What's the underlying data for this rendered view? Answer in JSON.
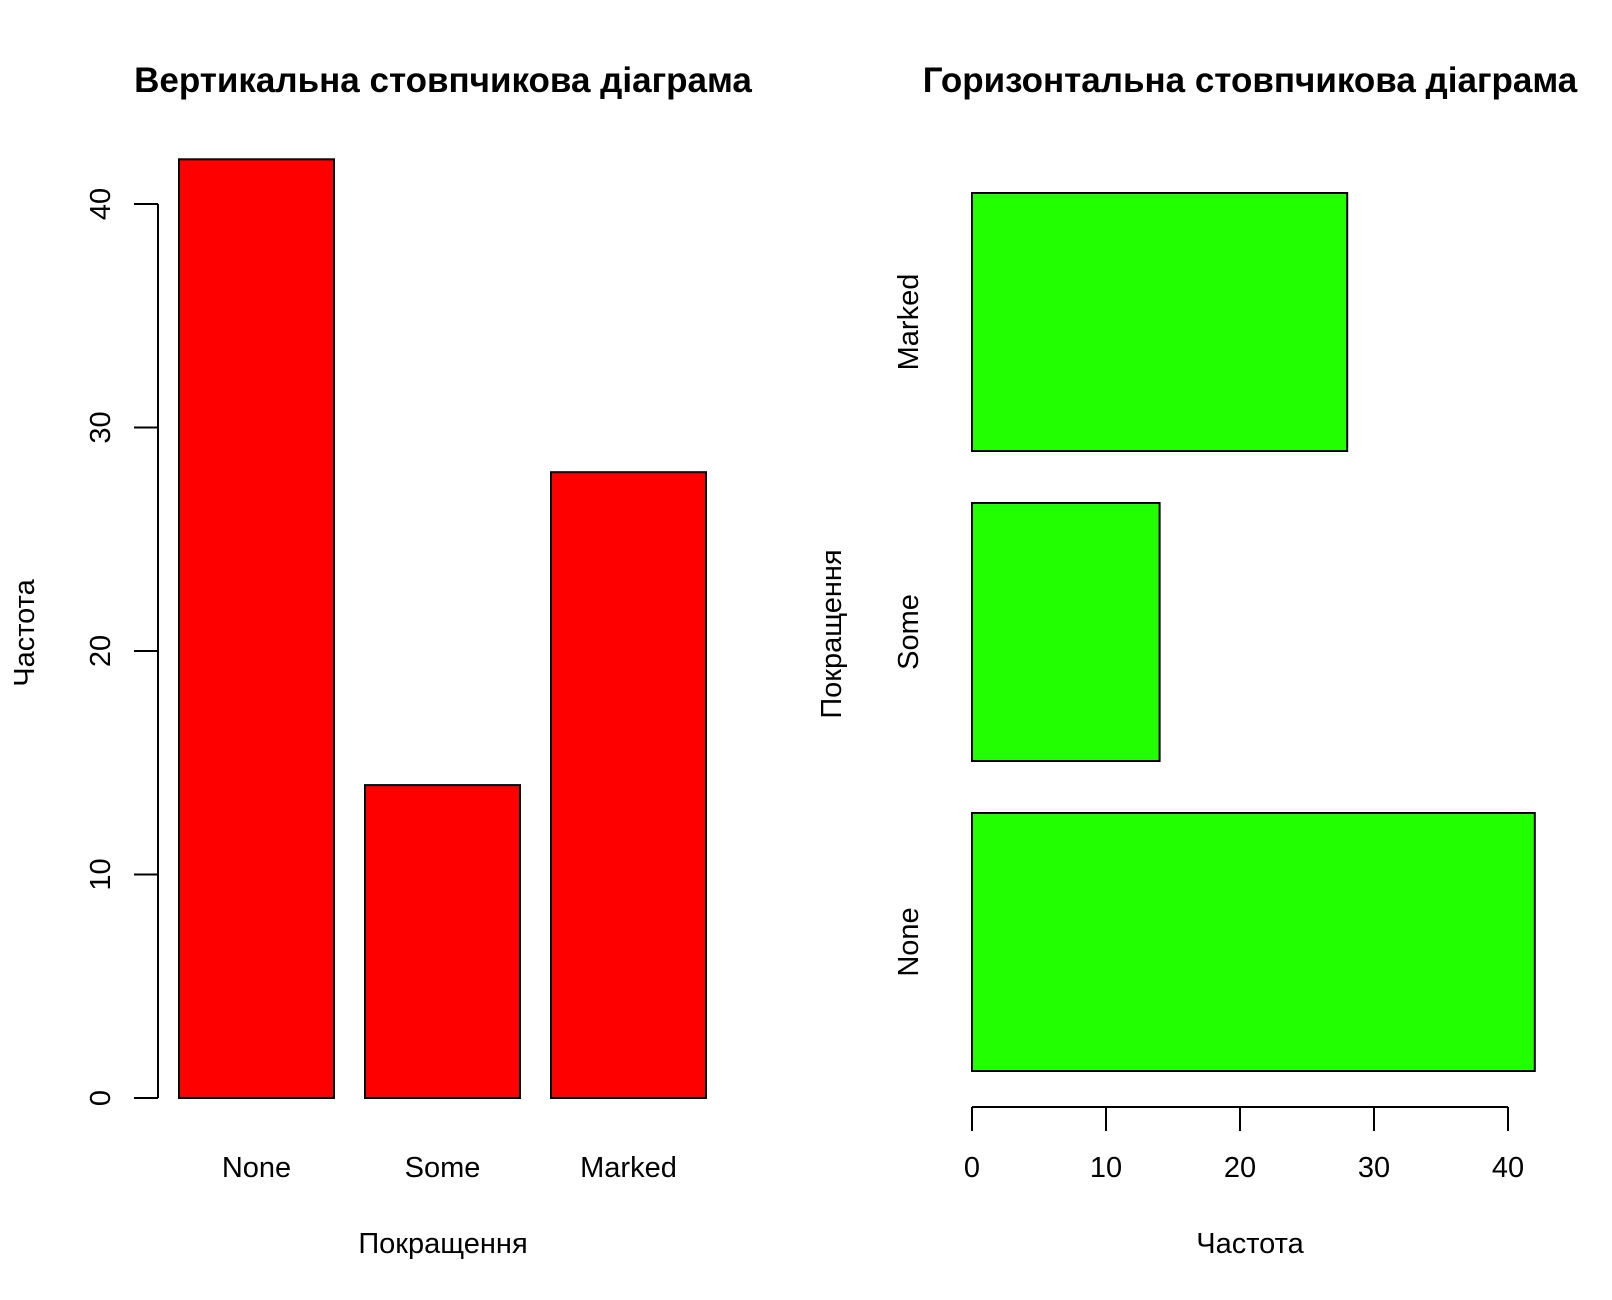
{
  "chart_data": [
    {
      "type": "bar",
      "orientation": "vertical",
      "title": "Вертикальна стовпчикова діаграма",
      "xlabel": "Покращення",
      "ylabel": "Частота",
      "categories": [
        "None",
        "Some",
        "Marked"
      ],
      "values": [
        42,
        14,
        28
      ],
      "ylim": [
        0,
        42
      ],
      "yticks": [
        "0",
        "10",
        "20",
        "30",
        "40"
      ],
      "bar_color": "#ff0000",
      "grid": false
    },
    {
      "type": "bar",
      "orientation": "horizontal",
      "title": "Горизонтальна стовпчикова діаграма",
      "xlabel": "Частота",
      "ylabel": "Покращення",
      "categories": [
        "None",
        "Some",
        "Marked"
      ],
      "values": [
        42,
        14,
        28
      ],
      "xlim": [
        0,
        42
      ],
      "xticks": [
        "0",
        "10",
        "20",
        "30",
        "40"
      ],
      "bar_color": "#22ff00",
      "grid": false
    }
  ]
}
